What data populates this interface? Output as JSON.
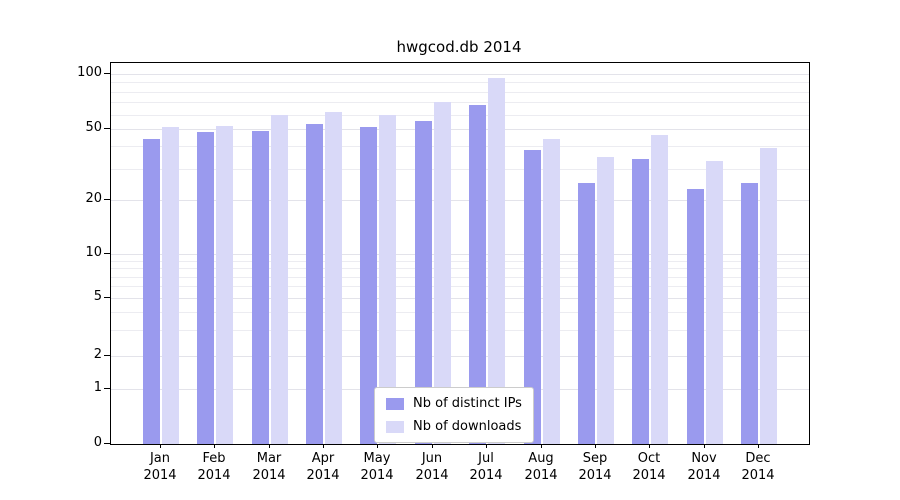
{
  "chart_data": {
    "type": "bar",
    "title": "hwgcod.db 2014",
    "categories": [
      "Jan",
      "Feb",
      "Mar",
      "Apr",
      "May",
      "Jun",
      "Jul",
      "Aug",
      "Sep",
      "Oct",
      "Nov",
      "Dec"
    ],
    "category_year": "2014",
    "series": [
      {
        "name": "Nb of distinct IPs",
        "color": "#9a9aee",
        "values": [
          44,
          48,
          49,
          53,
          51,
          55,
          68,
          38,
          25,
          34,
          23,
          25
        ]
      },
      {
        "name": "Nb of downloads",
        "color": "#d9d9f8",
        "values": [
          51,
          52,
          60,
          62,
          60,
          70,
          95,
          44,
          35,
          46,
          33,
          39
        ]
      }
    ],
    "yscale": "symlog",
    "yticks": [
      0,
      1,
      2,
      5,
      10,
      20,
      50,
      100
    ],
    "ylim": [
      0,
      110
    ],
    "grid": true,
    "legend_position": "lower-center-inside"
  }
}
